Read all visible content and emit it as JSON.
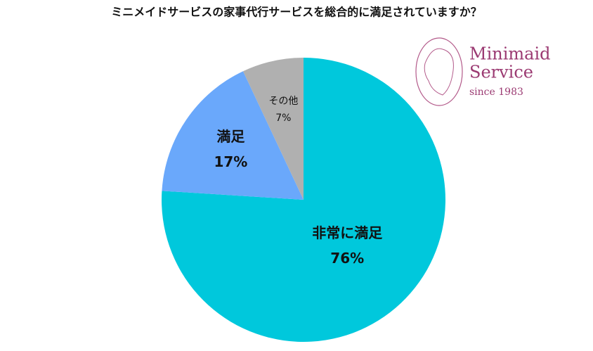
{
  "chart_data": {
    "type": "pie",
    "title": "ミニメイドサービスの家事代行サービスを総合的に満足されていますか？",
    "categories": [
      "非常に満足",
      "満足",
      "その他"
    ],
    "values": [
      76,
      17,
      7
    ],
    "value_labels": [
      "76%",
      "17%",
      "7%"
    ],
    "colors": [
      "#00c8dc",
      "#6aa8fb",
      "#b0b0b0"
    ]
  },
  "logo": {
    "name_line1": "Minimaid",
    "name_line2": "Service",
    "tagline": "since 1983"
  }
}
